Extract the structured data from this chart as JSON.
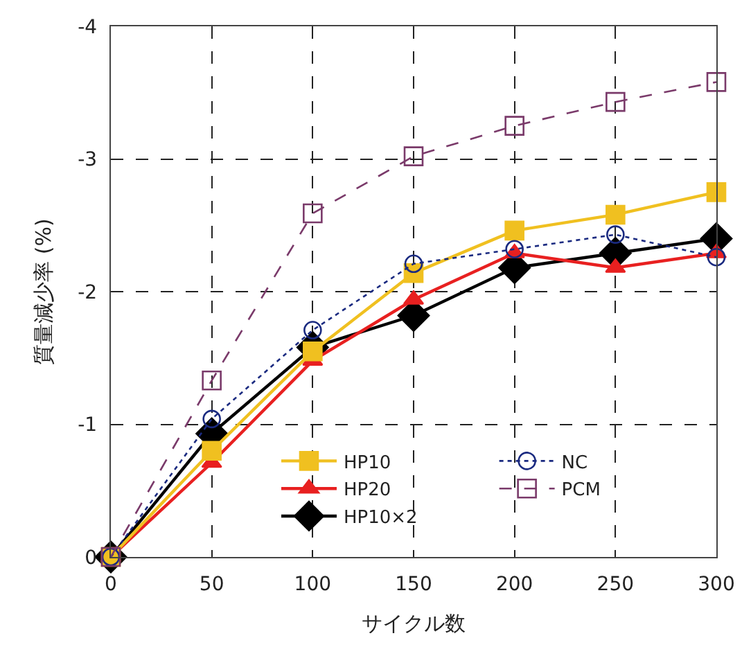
{
  "chart_data": {
    "type": "line",
    "xlabel": "サイクル数",
    "ylabel": "質量減少率 (%)",
    "x": [
      0,
      50,
      100,
      150,
      200,
      250,
      300
    ],
    "xlim": [
      0,
      300
    ],
    "xticks": [
      0,
      50,
      100,
      150,
      200,
      250,
      300
    ],
    "ylim": [
      0,
      -4
    ],
    "yticks": [
      0,
      -1,
      -2,
      -3,
      -4
    ],
    "grid": true,
    "legend": "bottom right",
    "series": [
      {
        "name": "HP10",
        "color": "#f0c020",
        "marker": "square",
        "line_style": "solid",
        "values": [
          0,
          -0.8,
          -1.55,
          -2.14,
          -2.46,
          -2.58,
          -2.75
        ]
      },
      {
        "name": "HP20",
        "color": "#e82020",
        "marker": "triangle",
        "line_style": "solid",
        "values": [
          0,
          -0.71,
          -1.48,
          -1.94,
          -2.29,
          -2.18,
          -2.29
        ]
      },
      {
        "name": "HP10×2",
        "color": "#000000",
        "marker": "diamond",
        "line_style": "solid",
        "values": [
          0,
          -0.93,
          -1.58,
          -1.82,
          -2.18,
          -2.29,
          -2.4
        ]
      },
      {
        "name": "NC",
        "color": "#1a2a80",
        "marker": "circle",
        "line_style": "dotted",
        "values": [
          0,
          -1.04,
          -1.71,
          -2.21,
          -2.32,
          -2.43,
          -2.26
        ]
      },
      {
        "name": "PCM",
        "color": "#7a3a6a",
        "marker": "square",
        "line_style": "dashed",
        "values": [
          0,
          -1.33,
          -2.59,
          -3.02,
          -3.25,
          -3.43,
          -3.58
        ]
      }
    ]
  }
}
